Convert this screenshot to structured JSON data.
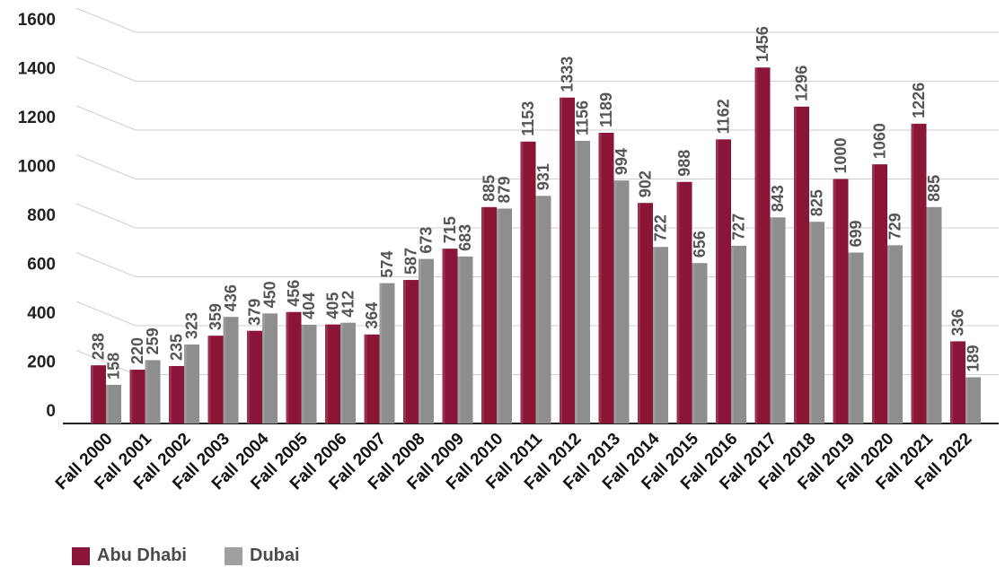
{
  "chart_data": {
    "type": "bar",
    "title": "",
    "xlabel": "",
    "ylabel": "",
    "ylim": [
      0,
      1600
    ],
    "yticks": [
      0,
      200,
      400,
      600,
      800,
      1000,
      1200,
      1400,
      1600
    ],
    "grid": true,
    "legend_position": "bottom-left",
    "categories": [
      "Fall 2000",
      "Fall 2001",
      "Fall 2002",
      "Fall 2003",
      "Fall 2004",
      "Fall 2005",
      "Fall 2006",
      "Fall 2007",
      "Fall 2008",
      "Fall 2009",
      "Fall 2010",
      "Fall 2011",
      "Fall 2012",
      "Fall 2013",
      "Fall 2014",
      "Fall 2015",
      "Fall 2016",
      "Fall 2017",
      "Fall 2018",
      "Fall 2019",
      "Fall 2020",
      "Fall 2021",
      "Fall 2022"
    ],
    "series": [
      {
        "name": "Abu Dhabi",
        "color": "#8a1538",
        "values": [
          238,
          220,
          235,
          359,
          379,
          456,
          405,
          364,
          587,
          715,
          885,
          1153,
          1333,
          1189,
          902,
          988,
          1162,
          1456,
          1296,
          1000,
          1060,
          1226,
          336
        ]
      },
      {
        "name": "Dubai",
        "color": "#8e8e8e",
        "values": [
          158,
          259,
          323,
          436,
          450,
          404,
          412,
          574,
          673,
          683,
          879,
          931,
          1156,
          994,
          722,
          656,
          727,
          843,
          825,
          699,
          729,
          885,
          189
        ]
      }
    ]
  }
}
